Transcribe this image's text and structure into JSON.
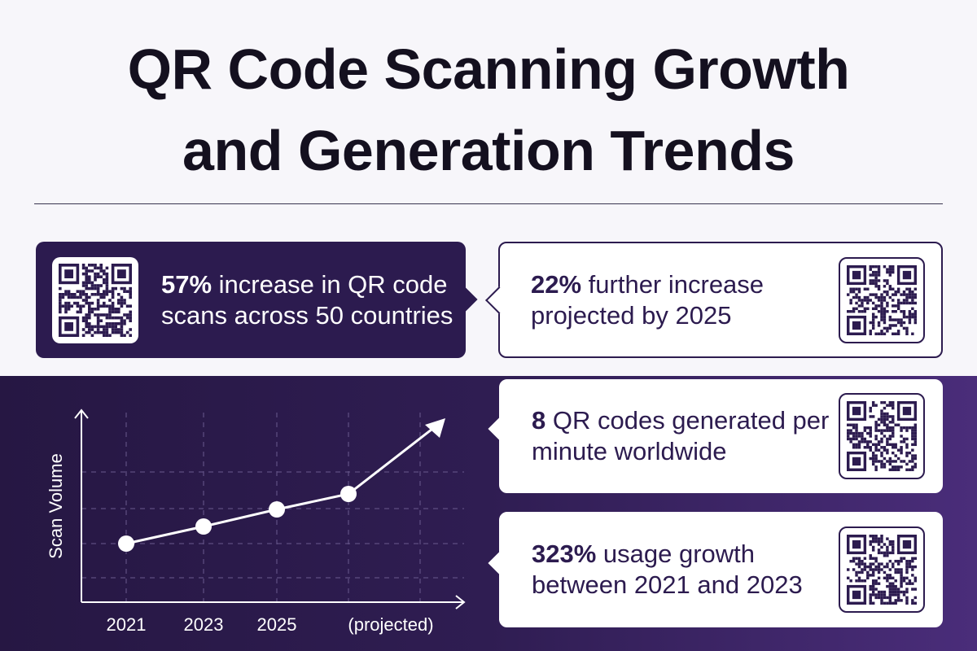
{
  "title": {
    "line1": "QR Code Scanning Growth",
    "line2": "and Generation Trends"
  },
  "stats": [
    {
      "value": "57%",
      "text": " increase in QR code scans across 50 countries",
      "icon": "qr-code-icon"
    },
    {
      "value": "22%",
      "text": " further increase projected by 2025",
      "icon": "qr-code-icon"
    },
    {
      "value": "8",
      "text": " QR codes generated per minute worldwide",
      "icon": "qr-code-icon"
    },
    {
      "value": "323%",
      "text": " usage growth between 2021 and 2023",
      "icon": "qr-code-icon"
    }
  ],
  "chart": {
    "ylabel": "Scan Volume",
    "xlabels": [
      "2021",
      "2023",
      "2025",
      "(projected)"
    ],
    "trend": "rising, steeper after 2025 with upward arrow"
  },
  "colors": {
    "primary": "#2c1b4f",
    "band_end": "#4a2d7a",
    "background": "#f7f6fa"
  }
}
